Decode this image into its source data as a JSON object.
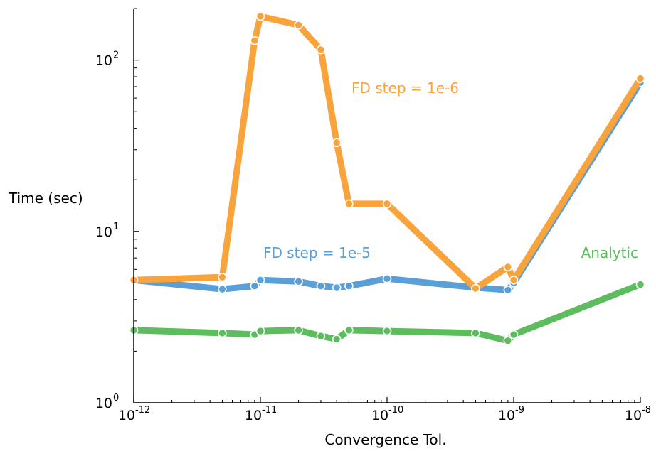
{
  "chart_data": {
    "type": "line",
    "title": "",
    "xlabel": "Convergence Tol.",
    "ylabel": "Time (sec)",
    "x_scale": "log",
    "y_scale": "log",
    "xlim": [
      1e-12,
      1e-08
    ],
    "ylim": [
      1,
      200
    ],
    "grid": false,
    "legend": "none (direct series labels)",
    "x_ticks": [
      {
        "base": "10",
        "exp": "-12",
        "value": 1e-12
      },
      {
        "base": "10",
        "exp": "-11",
        "value": 1e-11
      },
      {
        "base": "10",
        "exp": "-10",
        "value": 1e-10
      },
      {
        "base": "10",
        "exp": "-9",
        "value": 1e-09
      },
      {
        "base": "10",
        "exp": "-8",
        "value": 1e-08
      }
    ],
    "y_ticks": [
      {
        "base": "10",
        "exp": "0",
        "value": 1
      },
      {
        "base": "10",
        "exp": "1",
        "value": 10
      },
      {
        "base": "10",
        "exp": "2",
        "value": 100
      }
    ],
    "series": [
      {
        "name": "FD step = 1e-5",
        "color": "#5b9fd9",
        "x": [
          1e-12,
          5e-12,
          9e-12,
          1e-11,
          2e-11,
          3e-11,
          4e-11,
          5e-11,
          1e-10,
          5e-10,
          9e-10,
          1e-09,
          1e-08
        ],
        "y": [
          5.2,
          4.6,
          4.8,
          5.2,
          5.1,
          4.8,
          4.7,
          4.8,
          5.3,
          4.7,
          4.55,
          5.0,
          74
        ]
      },
      {
        "name": "FD step = 1e-6",
        "color": "#f9a33d",
        "x": [
          1e-12,
          5e-12,
          9e-12,
          1e-11,
          2e-11,
          3e-11,
          4e-11,
          5e-11,
          1e-10,
          5e-10,
          9e-10,
          1e-09,
          1e-08
        ],
        "y": [
          5.2,
          5.4,
          130,
          180,
          160,
          115,
          33,
          14.5,
          14.5,
          4.65,
          6.2,
          5.2,
          78
        ]
      },
      {
        "name": "Analytic",
        "color": "#5cbc5e",
        "x": [
          1e-12,
          5e-12,
          9e-12,
          1e-11,
          2e-11,
          3e-11,
          4e-11,
          5e-11,
          1e-10,
          5e-10,
          9e-10,
          1e-09,
          1e-08
        ],
        "y": [
          2.65,
          2.55,
          2.5,
          2.62,
          2.65,
          2.45,
          2.35,
          2.65,
          2.62,
          2.55,
          2.3,
          2.5,
          4.9
        ]
      }
    ]
  }
}
